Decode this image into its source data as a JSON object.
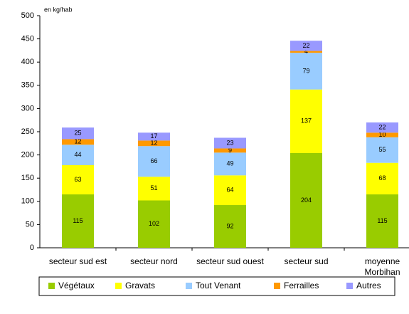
{
  "chart_data": {
    "type": "stacked_bar",
    "unit_label": "en kg/hab",
    "categories": [
      "secteur sud est",
      "secteur nord",
      "secteur sud ouest",
      "secteur sud",
      "moyenne Morbihan"
    ],
    "series": [
      {
        "name": "Végétaux",
        "color": "#99cc00",
        "values": [
          115,
          102,
          92,
          204,
          115
        ]
      },
      {
        "name": "Gravats",
        "color": "#ffff00",
        "values": [
          63,
          51,
          64,
          137,
          68
        ]
      },
      {
        "name": "Tout Venant",
        "color": "#99ccff",
        "values": [
          44,
          66,
          49,
          79,
          55
        ]
      },
      {
        "name": "Ferrailles",
        "color": "#ff9900",
        "values": [
          12,
          12,
          9,
          4,
          10
        ]
      },
      {
        "name": "Autres",
        "color": "#9999ff",
        "values": [
          25,
          17,
          23,
          22,
          22
        ]
      }
    ],
    "ylim": [
      0,
      500
    ],
    "yticks": [
      0,
      50,
      100,
      150,
      200,
      250,
      300,
      350,
      400,
      450,
      500
    ],
    "grid": false,
    "legend": "bottom"
  }
}
